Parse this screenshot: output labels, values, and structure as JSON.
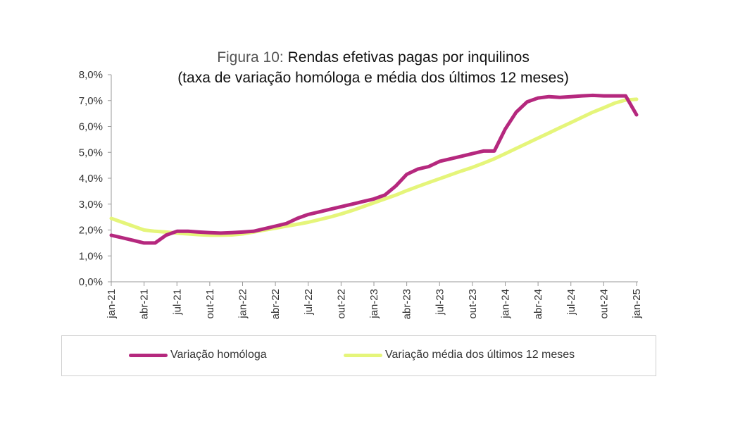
{
  "title": {
    "prefix": "Figura 10:",
    "main": "Rendas efetivas pagas por inquilinos",
    "subtitle": "(taxa de variação homóloga e média dos últimos 12 meses)"
  },
  "colors": {
    "series1": "#b5287e",
    "series2": "#e5f57a",
    "axis": "#999999"
  },
  "chart_data": {
    "type": "line",
    "title": "Figura 10: Rendas efetivas pagas por inquilinos (taxa de variação homóloga e média dos últimos 12 meses)",
    "xlabel": "",
    "ylabel": "",
    "ylim": [
      0,
      8
    ],
    "y_ticks": [
      "0,0%",
      "1,0%",
      "2,0%",
      "3,0%",
      "4,0%",
      "5,0%",
      "6,0%",
      "7,0%",
      "8,0%"
    ],
    "x_tick_labels": [
      "jan-21",
      "abr-21",
      "jul-21",
      "out-21",
      "jan-22",
      "abr-22",
      "jul-22",
      "out-22",
      "jan-23",
      "abr-23",
      "jul-23",
      "out-23",
      "jan-24",
      "abr-24",
      "jul-24",
      "out-24",
      "jan-25"
    ],
    "legend_position": "bottom",
    "months_count": 49,
    "series": [
      {
        "name": "Variação homóloga",
        "values": [
          1.8,
          1.7,
          1.6,
          1.5,
          1.5,
          1.8,
          1.95,
          1.95,
          1.92,
          1.9,
          1.88,
          1.9,
          1.92,
          1.95,
          2.05,
          2.15,
          2.25,
          2.45,
          2.6,
          2.7,
          2.8,
          2.9,
          3.0,
          3.1,
          3.2,
          3.35,
          3.7,
          4.15,
          4.35,
          4.45,
          4.65,
          4.75,
          4.85,
          4.95,
          5.05,
          5.05,
          5.9,
          6.55,
          6.95,
          7.1,
          7.15,
          7.12,
          7.15,
          7.18,
          7.2,
          7.18,
          7.18,
          7.18,
          6.45
        ]
      },
      {
        "name": "Variação média dos últimos 12 meses",
        "values": [
          2.45,
          2.3,
          2.15,
          2.0,
          1.95,
          1.92,
          1.88,
          1.85,
          1.82,
          1.8,
          1.8,
          1.81,
          1.85,
          1.92,
          2.0,
          2.07,
          2.15,
          2.22,
          2.3,
          2.4,
          2.5,
          2.62,
          2.75,
          2.9,
          3.05,
          3.2,
          3.35,
          3.52,
          3.68,
          3.83,
          3.98,
          4.13,
          4.28,
          4.42,
          4.58,
          4.75,
          4.95,
          5.15,
          5.35,
          5.55,
          5.75,
          5.95,
          6.15,
          6.35,
          6.55,
          6.72,
          6.9,
          7.02,
          7.05
        ]
      }
    ]
  }
}
